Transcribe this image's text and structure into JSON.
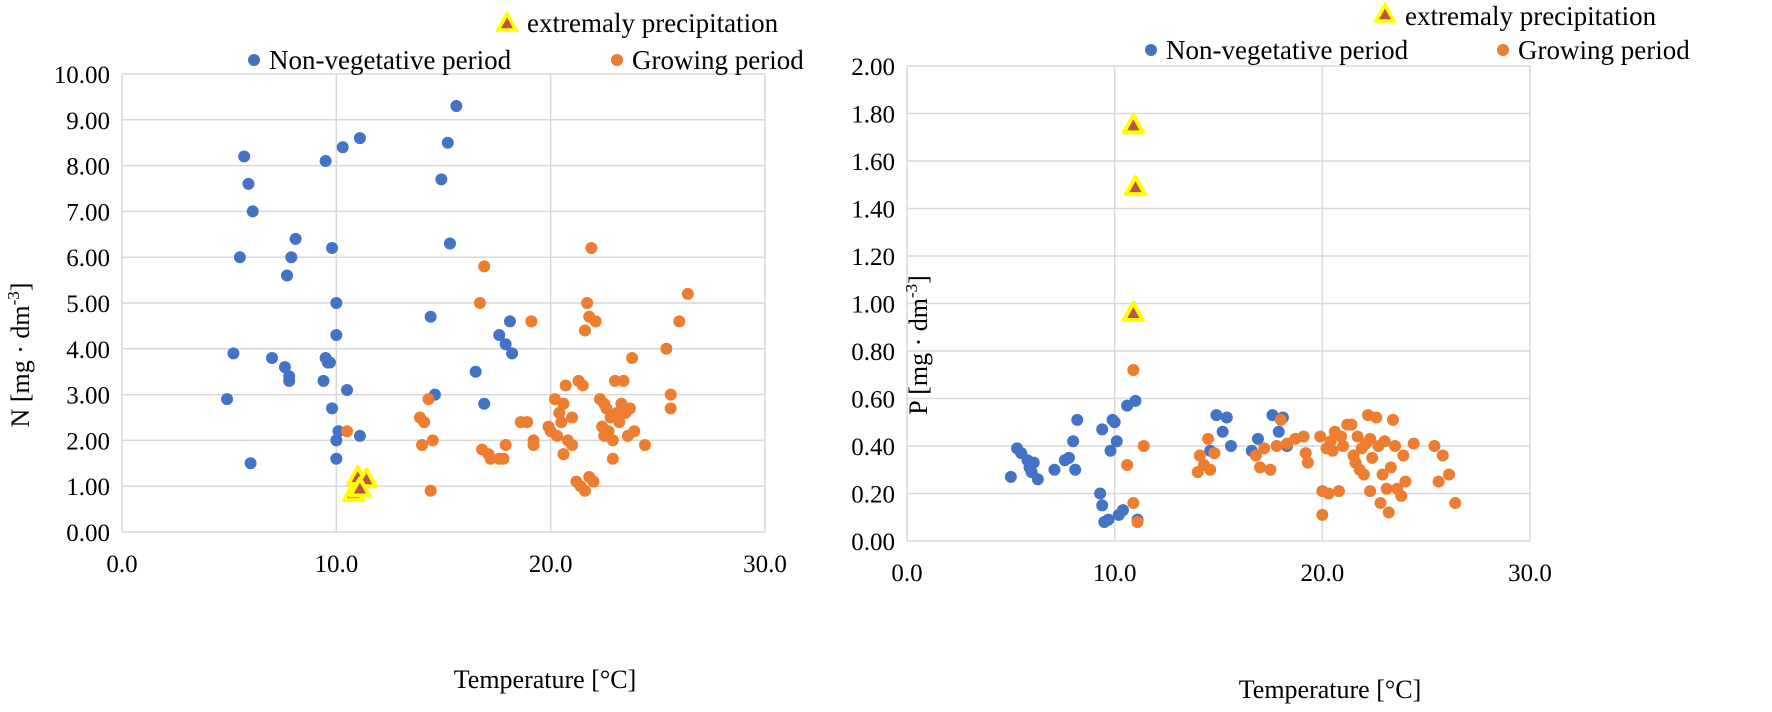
{
  "chart_data": [
    {
      "type": "scatter",
      "xlabel": "Temperature  [°C]",
      "ylabel_main": "N [mg · dm",
      "ylabel_sup": "-3",
      "ylabel_tail": "]",
      "xlim": [
        0,
        30
      ],
      "ylim": [
        0,
        10
      ],
      "xticks": [
        "0.0",
        "10.0",
        "20.0",
        "30.0"
      ],
      "yticks": [
        "0.00",
        "1.00",
        "2.00",
        "3.00",
        "4.00",
        "5.00",
        "6.00",
        "7.00",
        "8.00",
        "9.00",
        "10.00"
      ],
      "grid": true,
      "legend": [
        "extremaly  precipitation",
        "Non-vegetative period",
        "Growing period"
      ],
      "series": [
        {
          "name": "Non-vegetative period",
          "marker": "circle",
          "color": "#4472C4",
          "points": [
            [
              4.9,
              2.9
            ],
            [
              5.2,
              3.9
            ],
            [
              5.5,
              6.0
            ],
            [
              5.7,
              8.2
            ],
            [
              5.9,
              7.6
            ],
            [
              6.0,
              1.5
            ],
            [
              6.1,
              7.0
            ],
            [
              7.0,
              3.8
            ],
            [
              7.6,
              3.6
            ],
            [
              7.7,
              5.6
            ],
            [
              7.8,
              3.4
            ],
            [
              7.8,
              3.3
            ],
            [
              7.9,
              6.0
            ],
            [
              8.1,
              6.4
            ],
            [
              9.4,
              3.3
            ],
            [
              9.5,
              3.8
            ],
            [
              9.5,
              8.1
            ],
            [
              9.6,
              3.7
            ],
            [
              9.7,
              3.7
            ],
            [
              9.8,
              6.2
            ],
            [
              9.8,
              2.7
            ],
            [
              10.0,
              2.0
            ],
            [
              10.0,
              1.6
            ],
            [
              10.0,
              4.3
            ],
            [
              10.0,
              5.0
            ],
            [
              10.1,
              2.2
            ],
            [
              10.3,
              8.4
            ],
            [
              10.5,
              3.1
            ],
            [
              11.1,
              8.6
            ],
            [
              11.1,
              2.1
            ],
            [
              14.4,
              4.7
            ],
            [
              14.6,
              3.0
            ],
            [
              14.9,
              7.7
            ],
            [
              15.2,
              8.5
            ],
            [
              15.3,
              6.3
            ],
            [
              15.6,
              9.3
            ],
            [
              16.5,
              3.5
            ],
            [
              16.9,
              2.8
            ],
            [
              17.6,
              4.3
            ],
            [
              17.9,
              4.1
            ],
            [
              18.1,
              4.6
            ],
            [
              18.2,
              3.9
            ]
          ]
        },
        {
          "name": "Growing period",
          "marker": "circle",
          "color": "#ED7D31",
          "points": [
            [
              10.5,
              2.2
            ],
            [
              13.9,
              2.5
            ],
            [
              14.0,
              1.9
            ],
            [
              14.1,
              2.4
            ],
            [
              14.3,
              2.9
            ],
            [
              14.4,
              0.9
            ],
            [
              14.5,
              2.0
            ],
            [
              16.7,
              5.0
            ],
            [
              16.8,
              1.8
            ],
            [
              16.9,
              5.8
            ],
            [
              17.1,
              1.7
            ],
            [
              17.2,
              1.6
            ],
            [
              17.6,
              1.6
            ],
            [
              17.8,
              1.6
            ],
            [
              17.9,
              1.9
            ],
            [
              18.6,
              2.4
            ],
            [
              18.9,
              2.4
            ],
            [
              19.1,
              4.6
            ],
            [
              19.2,
              2.0
            ],
            [
              19.2,
              1.9
            ],
            [
              19.9,
              2.3
            ],
            [
              20.0,
              2.2
            ],
            [
              20.2,
              2.9
            ],
            [
              20.3,
              2.1
            ],
            [
              20.4,
              2.6
            ],
            [
              20.5,
              2.4
            ],
            [
              20.6,
              2.8
            ],
            [
              20.6,
              1.7
            ],
            [
              20.7,
              3.2
            ],
            [
              20.8,
              2.0
            ],
            [
              21.0,
              2.5
            ],
            [
              21.0,
              1.9
            ],
            [
              21.2,
              1.1
            ],
            [
              21.3,
              3.3
            ],
            [
              21.4,
              1.0
            ],
            [
              21.5,
              3.2
            ],
            [
              21.6,
              0.9
            ],
            [
              21.6,
              4.4
            ],
            [
              21.7,
              5.0
            ],
            [
              21.8,
              4.7
            ],
            [
              21.8,
              1.2
            ],
            [
              21.9,
              6.2
            ],
            [
              22.0,
              1.1
            ],
            [
              22.1,
              4.6
            ],
            [
              22.3,
              2.9
            ],
            [
              22.4,
              2.3
            ],
            [
              22.5,
              2.8
            ],
            [
              22.5,
              2.1
            ],
            [
              22.6,
              2.7
            ],
            [
              22.7,
              2.2
            ],
            [
              22.8,
              2.5
            ],
            [
              22.9,
              1.6
            ],
            [
              22.9,
              2.0
            ],
            [
              23.0,
              3.3
            ],
            [
              23.1,
              2.6
            ],
            [
              23.2,
              2.4
            ],
            [
              23.3,
              2.8
            ],
            [
              23.4,
              3.3
            ],
            [
              23.5,
              2.6
            ],
            [
              23.6,
              2.1
            ],
            [
              23.7,
              2.7
            ],
            [
              23.8,
              3.8
            ],
            [
              23.9,
              2.2
            ],
            [
              24.4,
              1.9
            ],
            [
              25.4,
              4.0
            ],
            [
              25.6,
              3.0
            ],
            [
              25.6,
              2.7
            ],
            [
              26.0,
              4.6
            ],
            [
              26.4,
              5.2
            ]
          ]
        },
        {
          "name": "extremaly  precipitation",
          "marker": "triangle",
          "color": "#C0504D",
          "edge_color": "#FFFF00",
          "points": [
            [
              10.8,
              0.85
            ],
            [
              11.0,
              1.2
            ],
            [
              11.4,
              1.15
            ],
            [
              11.1,
              0.95
            ]
          ]
        }
      ]
    },
    {
      "type": "scatter",
      "xlabel": "Temperature  [°C]",
      "ylabel_main": "P [mg · dm",
      "ylabel_sup": "-3",
      "ylabel_tail": "]",
      "xlim": [
        0,
        30
      ],
      "ylim": [
        0,
        2
      ],
      "xticks": [
        "0.0",
        "10.0",
        "20.0",
        "30.0"
      ],
      "yticks": [
        "0.00",
        "0.20",
        "0.40",
        "0.60",
        "0.80",
        "1.00",
        "1.20",
        "1.40",
        "1.60",
        "1.80",
        "2.00"
      ],
      "grid": true,
      "legend": [
        "extremaly  precipitation",
        "Non-vegetative period",
        "Growing period"
      ],
      "series": [
        {
          "name": "Non-vegetative period",
          "marker": "circle",
          "color": "#4472C4",
          "points": [
            [
              5.0,
              0.27
            ],
            [
              5.3,
              0.39
            ],
            [
              5.5,
              0.37
            ],
            [
              5.8,
              0.34
            ],
            [
              5.9,
              0.31
            ],
            [
              6.0,
              0.29
            ],
            [
              6.1,
              0.33
            ],
            [
              6.3,
              0.26
            ],
            [
              7.1,
              0.3
            ],
            [
              7.6,
              0.34
            ],
            [
              7.8,
              0.35
            ],
            [
              8.0,
              0.42
            ],
            [
              8.1,
              0.3
            ],
            [
              8.2,
              0.51
            ],
            [
              9.3,
              0.2
            ],
            [
              9.4,
              0.15
            ],
            [
              9.4,
              0.47
            ],
            [
              9.5,
              0.08
            ],
            [
              9.7,
              0.09
            ],
            [
              9.8,
              0.38
            ],
            [
              9.9,
              0.51
            ],
            [
              10.0,
              0.5
            ],
            [
              10.1,
              0.42
            ],
            [
              10.2,
              0.11
            ],
            [
              10.4,
              0.13
            ],
            [
              10.6,
              0.57
            ],
            [
              11.0,
              0.59
            ],
            [
              11.1,
              0.09
            ],
            [
              14.6,
              0.38
            ],
            [
              14.9,
              0.53
            ],
            [
              15.2,
              0.46
            ],
            [
              15.4,
              0.52
            ],
            [
              15.6,
              0.4
            ],
            [
              16.6,
              0.38
            ],
            [
              16.9,
              0.43
            ],
            [
              17.6,
              0.53
            ],
            [
              17.9,
              0.46
            ],
            [
              18.1,
              0.52
            ],
            [
              18.3,
              0.4
            ]
          ]
        },
        {
          "name": "Growing period",
          "marker": "circle",
          "color": "#ED7D31",
          "points": [
            [
              10.6,
              0.32
            ],
            [
              10.9,
              0.72
            ],
            [
              10.9,
              0.16
            ],
            [
              11.1,
              0.08
            ],
            [
              11.4,
              0.4
            ],
            [
              14.0,
              0.29
            ],
            [
              14.1,
              0.36
            ],
            [
              14.3,
              0.32
            ],
            [
              14.5,
              0.43
            ],
            [
              14.6,
              0.3
            ],
            [
              14.8,
              0.37
            ],
            [
              16.8,
              0.36
            ],
            [
              17.0,
              0.31
            ],
            [
              17.2,
              0.39
            ],
            [
              17.5,
              0.3
            ],
            [
              17.8,
              0.4
            ],
            [
              18.0,
              0.51
            ],
            [
              18.3,
              0.41
            ],
            [
              18.7,
              0.43
            ],
            [
              19.1,
              0.44
            ],
            [
              19.2,
              0.37
            ],
            [
              19.3,
              0.33
            ],
            [
              19.9,
              0.44
            ],
            [
              20.0,
              0.21
            ],
            [
              20.0,
              0.11
            ],
            [
              20.2,
              0.39
            ],
            [
              20.3,
              0.2
            ],
            [
              20.4,
              0.42
            ],
            [
              20.5,
              0.38
            ],
            [
              20.6,
              0.46
            ],
            [
              20.8,
              0.21
            ],
            [
              20.9,
              0.44
            ],
            [
              21.0,
              0.4
            ],
            [
              21.2,
              0.49
            ],
            [
              21.4,
              0.49
            ],
            [
              21.5,
              0.36
            ],
            [
              21.6,
              0.33
            ],
            [
              21.7,
              0.44
            ],
            [
              21.8,
              0.3
            ],
            [
              21.9,
              0.39
            ],
            [
              22.0,
              0.28
            ],
            [
              22.1,
              0.41
            ],
            [
              22.2,
              0.53
            ],
            [
              22.3,
              0.43
            ],
            [
              22.3,
              0.21
            ],
            [
              22.4,
              0.35
            ],
            [
              22.6,
              0.52
            ],
            [
              22.7,
              0.4
            ],
            [
              22.8,
              0.16
            ],
            [
              22.9,
              0.28
            ],
            [
              23.0,
              0.42
            ],
            [
              23.1,
              0.22
            ],
            [
              23.2,
              0.12
            ],
            [
              23.3,
              0.31
            ],
            [
              23.4,
              0.51
            ],
            [
              23.5,
              0.4
            ],
            [
              23.6,
              0.22
            ],
            [
              23.8,
              0.19
            ],
            [
              23.9,
              0.36
            ],
            [
              24.0,
              0.25
            ],
            [
              24.4,
              0.41
            ],
            [
              25.4,
              0.4
            ],
            [
              25.6,
              0.25
            ],
            [
              25.8,
              0.36
            ],
            [
              26.1,
              0.28
            ],
            [
              26.4,
              0.16
            ]
          ]
        },
        {
          "name": "extremaly  precipitation",
          "marker": "triangle",
          "color": "#C0504D",
          "edge_color": "#FFFF00",
          "points": [
            [
              10.9,
              1.75
            ],
            [
              11.0,
              1.49
            ],
            [
              10.9,
              0.96
            ]
          ]
        }
      ]
    }
  ]
}
